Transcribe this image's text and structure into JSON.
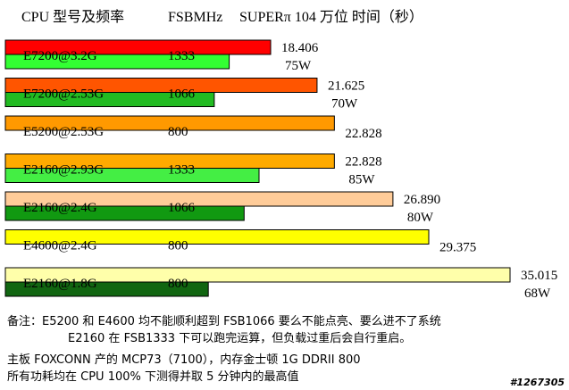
{
  "header": {
    "col1": "CPU 型号及频率",
    "col2": "FSBMHz",
    "col3": "SUPERπ 104 万位 时间（秒）"
  },
  "chart_data": {
    "type": "bar",
    "orientation": "horizontal",
    "title": "",
    "xlim": [
      0,
      35.5
    ],
    "series": [
      {
        "name": "",
        "unit": "s"
      },
      {
        "name": "",
        "unit": "W"
      }
    ],
    "rows": [
      {
        "cpu": "E7200@3.2G",
        "fsb": "1333",
        "time": 18.406,
        "time_label": "18.406",
        "time_color": "#ff0000",
        "power": 75,
        "power_label": "75W",
        "power_color": "#33ff33"
      },
      {
        "cpu": "E7200@2.53G",
        "fsb": "1066",
        "time": 21.625,
        "time_label": "21.625",
        "time_color": "#ff5500",
        "power": 70,
        "power_label": "70W",
        "power_color": "#22bb22"
      },
      {
        "cpu": "E5200@2.53G",
        "fsb": "800",
        "time": 22.828,
        "time_label": "22.828",
        "time_color": "#ff9900",
        "power": null,
        "power_label": "",
        "power_color": ""
      },
      {
        "cpu": "E2160@2.93G",
        "fsb": "1333",
        "time": 22.828,
        "time_label": "22.828",
        "time_color": "#ffaa00",
        "power": 85,
        "power_label": "85W",
        "power_color": "#44ee44"
      },
      {
        "cpu": "E2160@2.4G",
        "fsb": "1066",
        "time": 26.89,
        "time_label": "26.890",
        "time_color": "#ffcc99",
        "power": 80,
        "power_label": "80W",
        "power_color": "#119911"
      },
      {
        "cpu": "E4600@2.4G",
        "fsb": "800",
        "time": 29.375,
        "time_label": "29.375",
        "time_color": "#ffff00",
        "power": null,
        "power_label": "",
        "power_color": ""
      },
      {
        "cpu": "E2160@1.8G",
        "fsb": "800",
        "time": 35.015,
        "time_label": "35.015",
        "time_color": "#ffffaa",
        "power": 68,
        "power_label": "68W",
        "power_color": "#116611"
      }
    ]
  },
  "notes": [
    "备注：E5200 和 E4600 均不能顺利超到 FSB1066 要么不能点亮、要么进不了系统",
    "E2160 在 FSB1333 下可以跑完运算，但负载过重后会自行重启。",
    "主板 FOXCONN 产的 MCP73（7100），内存金士顿 1G DDRII 800",
    "所有功耗均在 CPU 100% 下测得并取 5 分钟内的最高值"
  ],
  "watermark": "#1267305"
}
